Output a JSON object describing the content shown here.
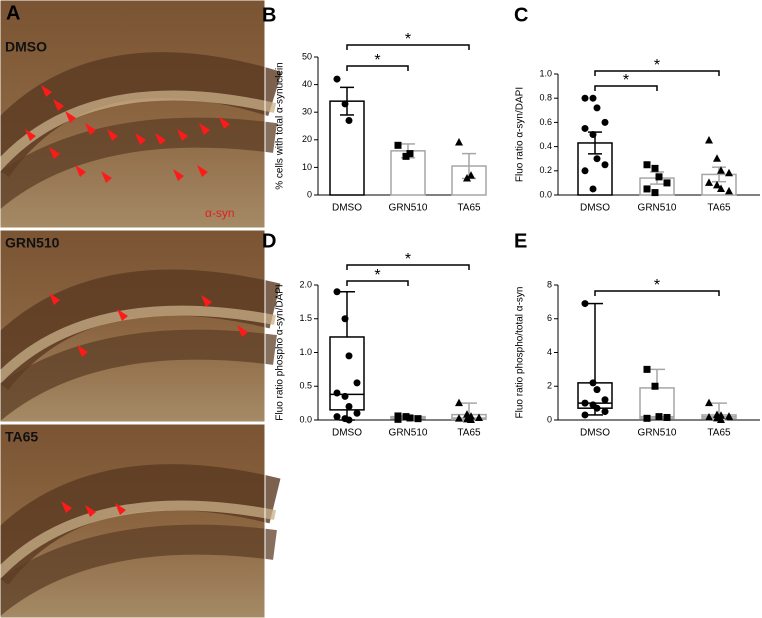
{
  "panel_a": {
    "label": "A",
    "images": [
      "DMSO",
      "GRN510",
      "TA65"
    ],
    "stain": "α-syn"
  },
  "chart_data": [
    {
      "type": "bar",
      "label": "B",
      "ylabel": "% cells with total α-synuclein",
      "categories": [
        "DMSO",
        "GRN510",
        "TA65"
      ],
      "colors": [
        "#000000",
        "#a6a6a6",
        "#a6a6a6"
      ],
      "markers": [
        "circle",
        "square",
        "triangle"
      ],
      "values": [
        34,
        16,
        10.5
      ],
      "errors": [
        5,
        2.5,
        4.5
      ],
      "points": [
        [
          42,
          33,
          27
        ],
        [
          18,
          14,
          15
        ],
        [
          19,
          6,
          7
        ]
      ],
      "ylim": [
        0,
        50
      ],
      "yticks": [
        0,
        10,
        20,
        30,
        40,
        50
      ],
      "significance": [
        {
          "from": 0,
          "to": 1,
          "label": "*"
        },
        {
          "from": 0,
          "to": 2,
          "label": "*"
        }
      ]
    },
    {
      "type": "bar",
      "label": "C",
      "ylabel": "Fluo ratio α-syn/DAPI",
      "categories": [
        "DMSO",
        "GRN510",
        "TA65"
      ],
      "colors": [
        "#000000",
        "#a6a6a6",
        "#a6a6a6"
      ],
      "markers": [
        "circle",
        "square",
        "triangle"
      ],
      "values": [
        0.43,
        0.14,
        0.17
      ],
      "errors": [
        0.09,
        0.05,
        0.06
      ],
      "points": [
        [
          0.8,
          0.8,
          0.72,
          0.6,
          0.55,
          0.5,
          0.3,
          0.25,
          0.2,
          0.05
        ],
        [
          0.25,
          0.22,
          0.15,
          0.1,
          0.05,
          0.02
        ],
        [
          0.45,
          0.3,
          0.2,
          0.18,
          0.1,
          0.08,
          0.05,
          0.03
        ]
      ],
      "ylim": [
        0,
        1
      ],
      "yticks": [
        {
          "value": 0,
          "label": "0.0"
        },
        0.2,
        0.4,
        0.6,
        0.8,
        {
          "value": 1,
          "label": "1.0"
        }
      ],
      "significance": [
        {
          "from": 0,
          "to": 1,
          "label": "*"
        },
        {
          "from": 0,
          "to": 2,
          "label": "*"
        }
      ]
    },
    {
      "type": "box",
      "label": "D",
      "ylabel": "Fluo ratio phospho α-syn/DAPI",
      "categories": [
        "DMSO",
        "GRN510",
        "TA65"
      ],
      "colors": [
        "#000000",
        "#a6a6a6",
        "#a6a6a6"
      ],
      "markers": [
        "circle",
        "square",
        "triangle"
      ],
      "boxes": [
        {
          "min": 0,
          "q1": 0.15,
          "median": 0.38,
          "q3": 1.23,
          "max": 1.9
        },
        {
          "min": 0.01,
          "q1": 0.02,
          "median": 0.03,
          "q3": 0.05,
          "max": 0.06
        },
        {
          "min": 0,
          "q1": 0.01,
          "median": 0.03,
          "q3": 0.08,
          "max": 0.25
        }
      ],
      "points": [
        [
          1.9,
          1.5,
          0.95,
          0.55,
          0.4,
          0.35,
          0.2,
          0.1,
          0.05,
          0.02,
          0
        ],
        [
          0.06,
          0.05,
          0.03,
          0.02,
          0.01
        ],
        [
          0.25,
          0.08,
          0.05,
          0.03,
          0.02,
          0.01,
          0
        ]
      ],
      "ylim": [
        0,
        2
      ],
      "yticks": [
        {
          "value": 0,
          "label": "0.0"
        },
        0.5,
        {
          "value": 1,
          "label": "1.0"
        },
        1.5,
        {
          "value": 2,
          "label": "2.0"
        }
      ],
      "significance": [
        {
          "from": 0,
          "to": 1,
          "label": "*"
        },
        {
          "from": 0,
          "to": 2,
          "label": "*"
        }
      ]
    },
    {
      "type": "box",
      "label": "E",
      "ylabel": "Fluo ratio phospho/total α-syn",
      "categories": [
        "DMSO",
        "GRN510",
        "TA65"
      ],
      "colors": [
        "#000000",
        "#a6a6a6",
        "#a6a6a6"
      ],
      "markers": [
        "circle",
        "square",
        "triangle"
      ],
      "boxes": [
        {
          "min": 0.3,
          "q1": 0.7,
          "median": 1.0,
          "q3": 2.2,
          "max": 6.9
        },
        {
          "min": 0.1,
          "q1": 0.1,
          "median": 0.2,
          "q3": 1.9,
          "max": 3.0
        },
        {
          "min": 0,
          "q1": 0.1,
          "median": 0.2,
          "q3": 0.3,
          "max": 1.0
        }
      ],
      "points": [
        [
          6.9,
          2.2,
          1.8,
          1.2,
          1.0,
          0.9,
          0.7,
          0.5,
          0.3
        ],
        [
          3.0,
          2.0,
          0.2,
          0.15,
          0.1
        ],
        [
          1.0,
          0.3,
          0.25,
          0.2,
          0.15,
          0.1,
          0
        ]
      ],
      "ylim": [
        0,
        8
      ],
      "yticks": [
        0,
        2,
        4,
        6,
        8
      ],
      "significance": [
        {
          "from": 0,
          "to": 2,
          "label": "*"
        }
      ]
    }
  ]
}
